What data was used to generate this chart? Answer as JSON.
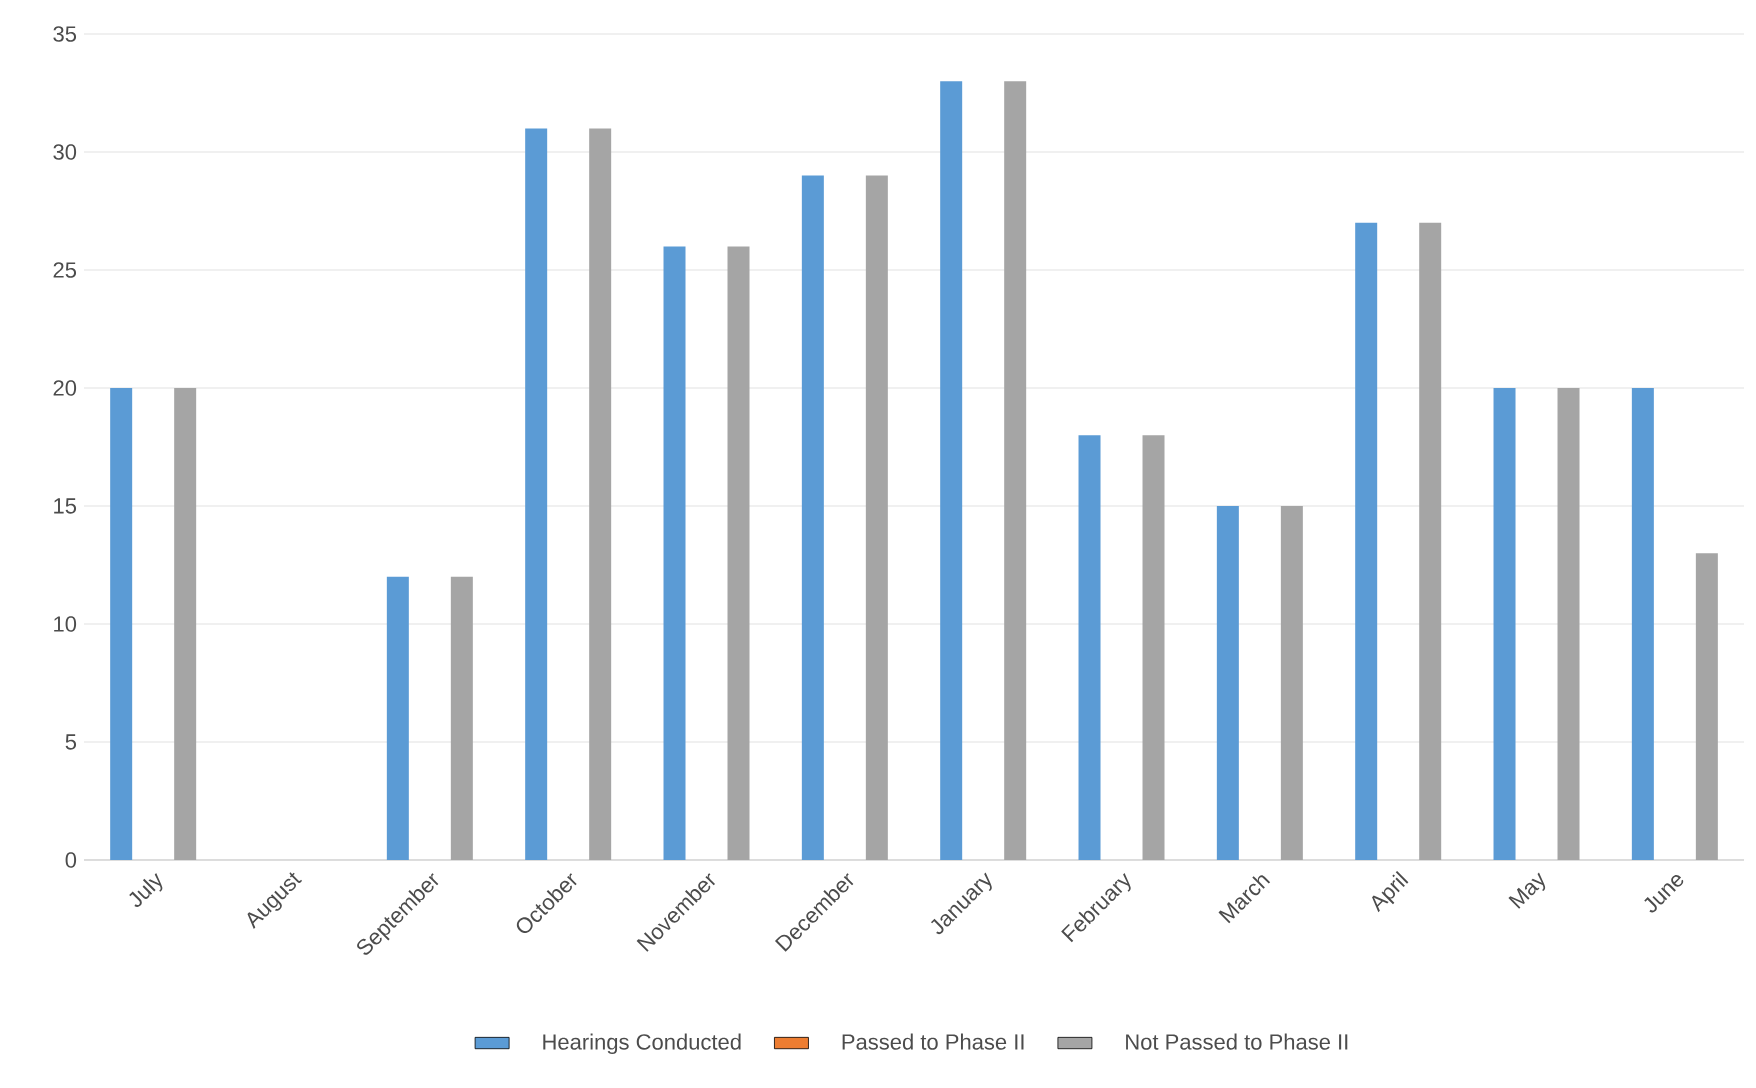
{
  "chart_data": {
    "type": "bar",
    "categories": [
      "July",
      "August",
      "September",
      "October",
      "November",
      "December",
      "January",
      "February",
      "March",
      "April",
      "May",
      "June"
    ],
    "series": [
      {
        "name": "Hearings Conducted",
        "color": "#5b9bd5",
        "values": [
          20,
          0,
          12,
          31,
          26,
          29,
          33,
          18,
          15,
          27,
          20,
          20
        ]
      },
      {
        "name": "Passed to Phase II",
        "color": "#ed7d31",
        "values": [
          0,
          0,
          0,
          0,
          0,
          0,
          0,
          0,
          0,
          0,
          0,
          0
        ]
      },
      {
        "name": "Not Passed to Phase II",
        "color": "#a5a5a5",
        "values": [
          20,
          0,
          12,
          31,
          26,
          29,
          33,
          18,
          15,
          27,
          20,
          13
        ]
      }
    ],
    "ylim": [
      0,
      35
    ],
    "yticks": [
      0,
      5,
      10,
      15,
      20,
      25,
      30,
      35
    ],
    "grid": "y",
    "legend": "bottom"
  }
}
